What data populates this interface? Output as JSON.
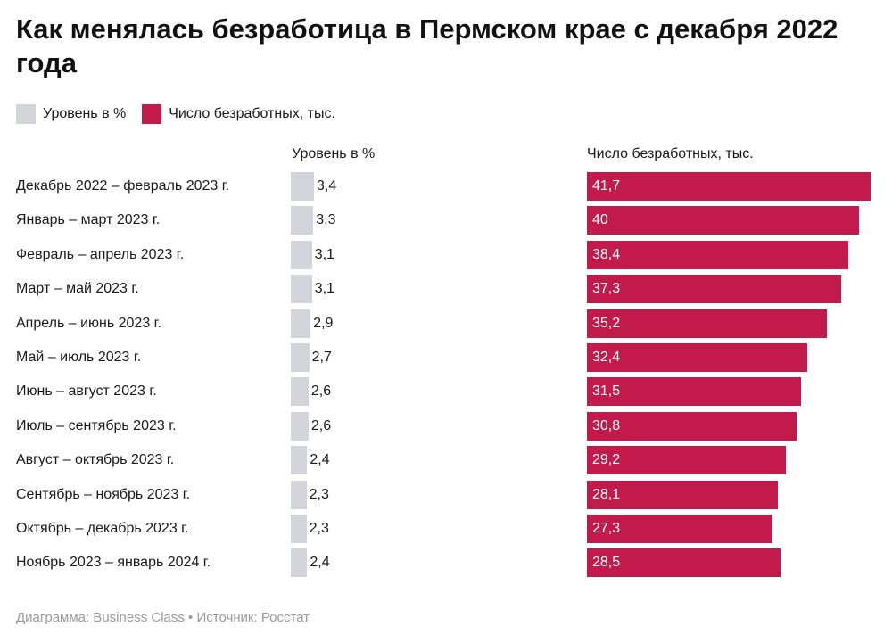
{
  "title": "Как менялась безработица в Пермском крае с декабря 2022 года",
  "footer": "Диаграмма: Business Class • Источник: Росстат",
  "colors": {
    "rate": "#d4d5db",
    "count": "#c21b4b"
  },
  "chart_data": {
    "type": "bar",
    "orientation": "horizontal",
    "legend": "top-left",
    "categories": [
      "Декабрь 2022 – февраль 2023 г.",
      "Январь – март 2023 г.",
      "Февраль – апрель 2023 г.",
      "Март – май 2023 г.",
      "Апрель – июнь 2023 г.",
      "Май – июль 2023 г.",
      "Июнь – август 2023 г.",
      "Июль – сентябрь 2023 г.",
      "Август – октябрь 2023 г.",
      "Сентябрь – ноябрь 2023 г.",
      "Октябрь – декабрь 2023 г.",
      "Ноябрь 2023 – январь 2024 г."
    ],
    "series": [
      {
        "name": "Уровень в %",
        "values": [
          3.4,
          3.3,
          3.1,
          3.1,
          2.9,
          2.7,
          2.6,
          2.6,
          2.4,
          2.3,
          2.3,
          2.4
        ],
        "labels": [
          "3,4",
          "3,3",
          "3,1",
          "3,1",
          "2,9",
          "2,7",
          "2,6",
          "2,6",
          "2,4",
          "2,3",
          "2,3",
          "2,4"
        ]
      },
      {
        "name": "Число безработных, тыс.",
        "values": [
          41.7,
          40,
          38.4,
          37.3,
          35.2,
          32.4,
          31.5,
          30.8,
          29.2,
          28.1,
          27.3,
          28.5
        ],
        "labels": [
          "41,7",
          "40",
          "38,4",
          "37,3",
          "35,2",
          "32,4",
          "31,5",
          "30,8",
          "29,2",
          "28,1",
          "27,3",
          "28,5"
        ]
      }
    ]
  }
}
